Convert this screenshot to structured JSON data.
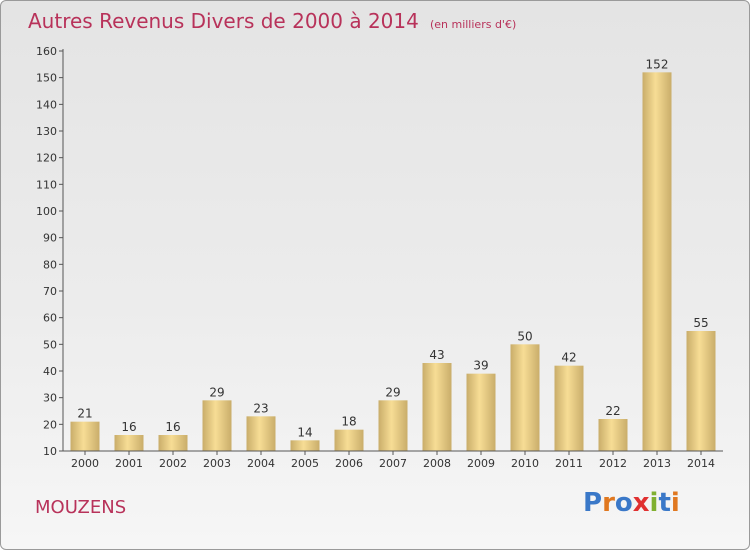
{
  "header": {
    "title": "Autres Revenus Divers de 2000 à 2014",
    "subtitle": "(en milliers d'€)"
  },
  "footer": {
    "location": "MOUZENS",
    "logo_text": "Proxiti",
    "logo_colors": [
      "#3a78c8",
      "#e07820",
      "#3a78c8",
      "#e03030",
      "#80b030",
      "#3a78c8",
      "#e07820"
    ]
  },
  "chart_data": {
    "type": "bar",
    "title": "Autres Revenus Divers de 2000 à 2014",
    "subtitle": "(en milliers d'€)",
    "categories": [
      "2000",
      "2001",
      "2002",
      "2003",
      "2004",
      "2005",
      "2006",
      "2007",
      "2008",
      "2009",
      "2010",
      "2011",
      "2012",
      "2013",
      "2014"
    ],
    "values": [
      21,
      16,
      16,
      29,
      23,
      14,
      18,
      29,
      43,
      39,
      50,
      42,
      22,
      152,
      55
    ],
    "ylim": [
      10,
      160
    ],
    "yticks": [
      10,
      20,
      30,
      40,
      50,
      60,
      70,
      80,
      90,
      100,
      110,
      120,
      130,
      140,
      150,
      160
    ],
    "grid": false,
    "bar_color_light": "#f7dd95",
    "bar_color_dark": "#c9ad6a",
    "axis_color": "#555555"
  }
}
